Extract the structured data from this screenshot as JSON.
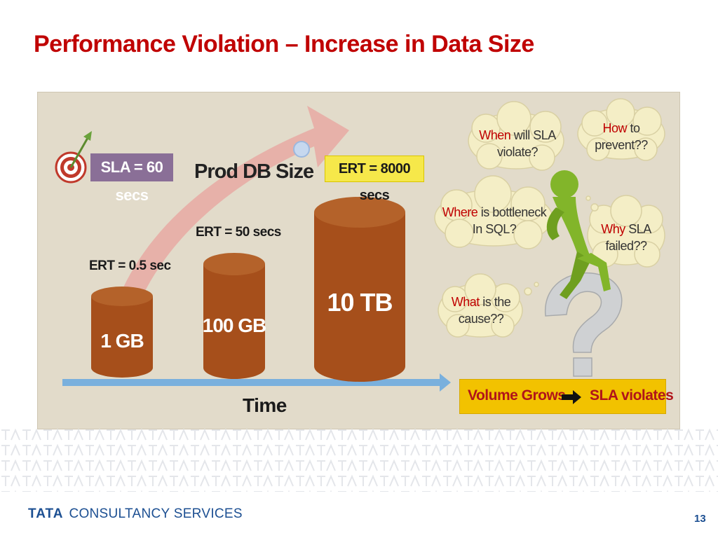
{
  "slide": {
    "title": "Performance Violation – Increase in Data Size",
    "page_number": "13"
  },
  "diagram": {
    "sla_badge": "SLA = 60 secs",
    "arrow_label": "Prod DB Size",
    "cylinders": [
      {
        "size": "1 GB",
        "ert": "ERT = 0.5 sec"
      },
      {
        "size": "100 GB",
        "ert": "ERT =  50 secs"
      },
      {
        "size": "10 TB",
        "ert": "ERT = 8000 secs"
      }
    ],
    "time_label": "Time",
    "thought_bubbles": [
      {
        "question": "When",
        "rest_line1": " will SLA",
        "line2": "violate?"
      },
      {
        "question": "How",
        "rest_line1": " to",
        "line2": "prevent??"
      },
      {
        "question": "Where",
        "rest_line1": " is bottleneck",
        "line2": "In SQL?"
      },
      {
        "question": "Why",
        "rest_line1": "  SLA",
        "line2": "failed??"
      },
      {
        "question": "What",
        "rest_line1": " is the",
        "line2": "cause??"
      }
    ],
    "conclusion": {
      "left": "Volume Grows",
      "right": "SLA violates"
    },
    "colors": {
      "cylinder": "#a64f1b",
      "arrow": "#e8a9a3",
      "time_axis": "#7ab0dd",
      "title": "#c00000",
      "brand": "#1c4f92"
    }
  },
  "footer": {
    "brand_bold": "TATA",
    "brand_rest": "CONSULTANCY SERVICES"
  }
}
